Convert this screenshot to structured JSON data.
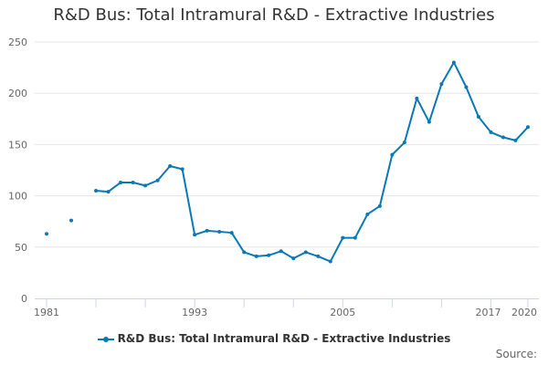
{
  "colors": {
    "series": "#0a78b4",
    "grid": "#e6e6e6",
    "axis": "#ccd6eb"
  },
  "source_label": "Source:",
  "chart_data": {
    "type": "line",
    "title": "R&D Bus: Total Intramural R&D - Extractive Industries",
    "xlabel": "",
    "ylabel": "",
    "xlim": [
      1981,
      2020
    ],
    "ylim": [
      0,
      250
    ],
    "yticks": [
      0,
      50,
      100,
      150,
      200,
      250
    ],
    "xticks": [
      1981,
      1993,
      2005,
      2017,
      2020
    ],
    "grid": true,
    "legend": "bottom-center",
    "series": [
      {
        "name": "R&D Bus: Total Intramural R&D - Extractive Industries",
        "x": [
          1981,
          1983,
          1985,
          1986,
          1987,
          1988,
          1989,
          1990,
          1991,
          1992,
          1993,
          1994,
          1995,
          1996,
          1997,
          1998,
          1999,
          2000,
          2001,
          2002,
          2003,
          2004,
          2005,
          2006,
          2007,
          2008,
          2009,
          2010,
          2011,
          2012,
          2013,
          2014,
          2015,
          2016,
          2017,
          2018,
          2019,
          2020
        ],
        "values": [
          63,
          76,
          105,
          104,
          113,
          113,
          110,
          115,
          129,
          126,
          62,
          66,
          65,
          64,
          45,
          41,
          42,
          46,
          39,
          45,
          41,
          36,
          59,
          59,
          82,
          90,
          140,
          152,
          195,
          172,
          209,
          230,
          206,
          177,
          162,
          157,
          154,
          167
        ]
      }
    ]
  }
}
